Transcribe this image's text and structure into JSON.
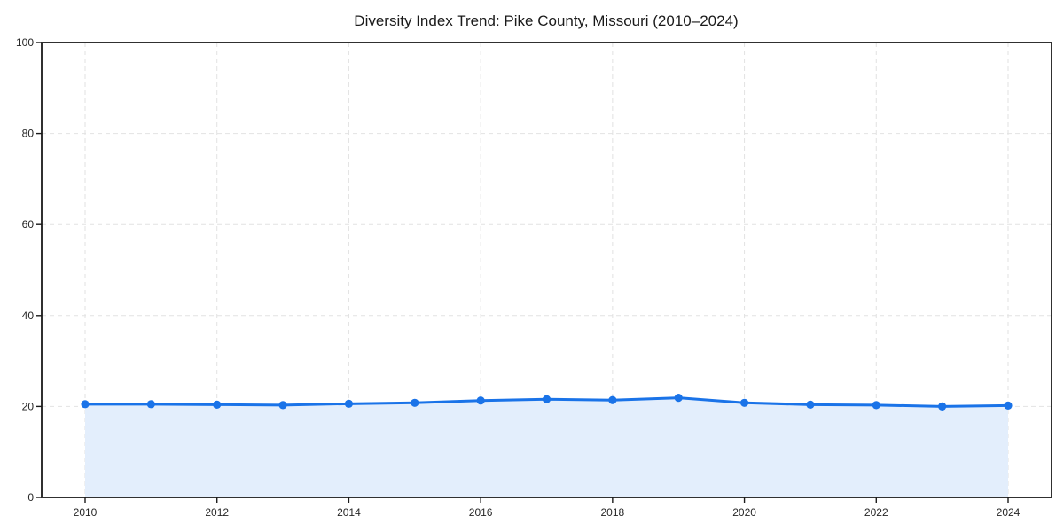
{
  "chart_data": {
    "type": "area",
    "title": "Diversity Index Trend: Pike County, Missouri (2010–2024)",
    "x": [
      2010,
      2011,
      2012,
      2013,
      2014,
      2015,
      2016,
      2017,
      2018,
      2019,
      2020,
      2021,
      2022,
      2023,
      2024
    ],
    "series": [
      {
        "name": "Diversity Index",
        "values": [
          20.5,
          20.5,
          20.4,
          20.3,
          20.6,
          20.8,
          21.3,
          21.6,
          21.4,
          21.9,
          20.8,
          20.4,
          20.3,
          20.0,
          20.2
        ]
      }
    ],
    "xlabel": "",
    "ylabel": "",
    "ylim": [
      0,
      100
    ],
    "yticks": [
      0,
      20,
      40,
      60,
      80,
      100
    ],
    "xticks": [
      2010,
      2012,
      2014,
      2016,
      2018,
      2020,
      2022,
      2024
    ],
    "grid": true,
    "grid_style": "dashed",
    "legend_position": "none",
    "marker": "circle",
    "colors": {
      "line": "#1a73e8",
      "marker": "#1a73e8",
      "fill": "#e3eefc",
      "grid": "#e2e2e2",
      "spine": "#1a1a1a",
      "tick": "#1a1a1a",
      "tick_label": "#262626",
      "title": "#1a1a1a",
      "background": "#ffffff"
    }
  }
}
